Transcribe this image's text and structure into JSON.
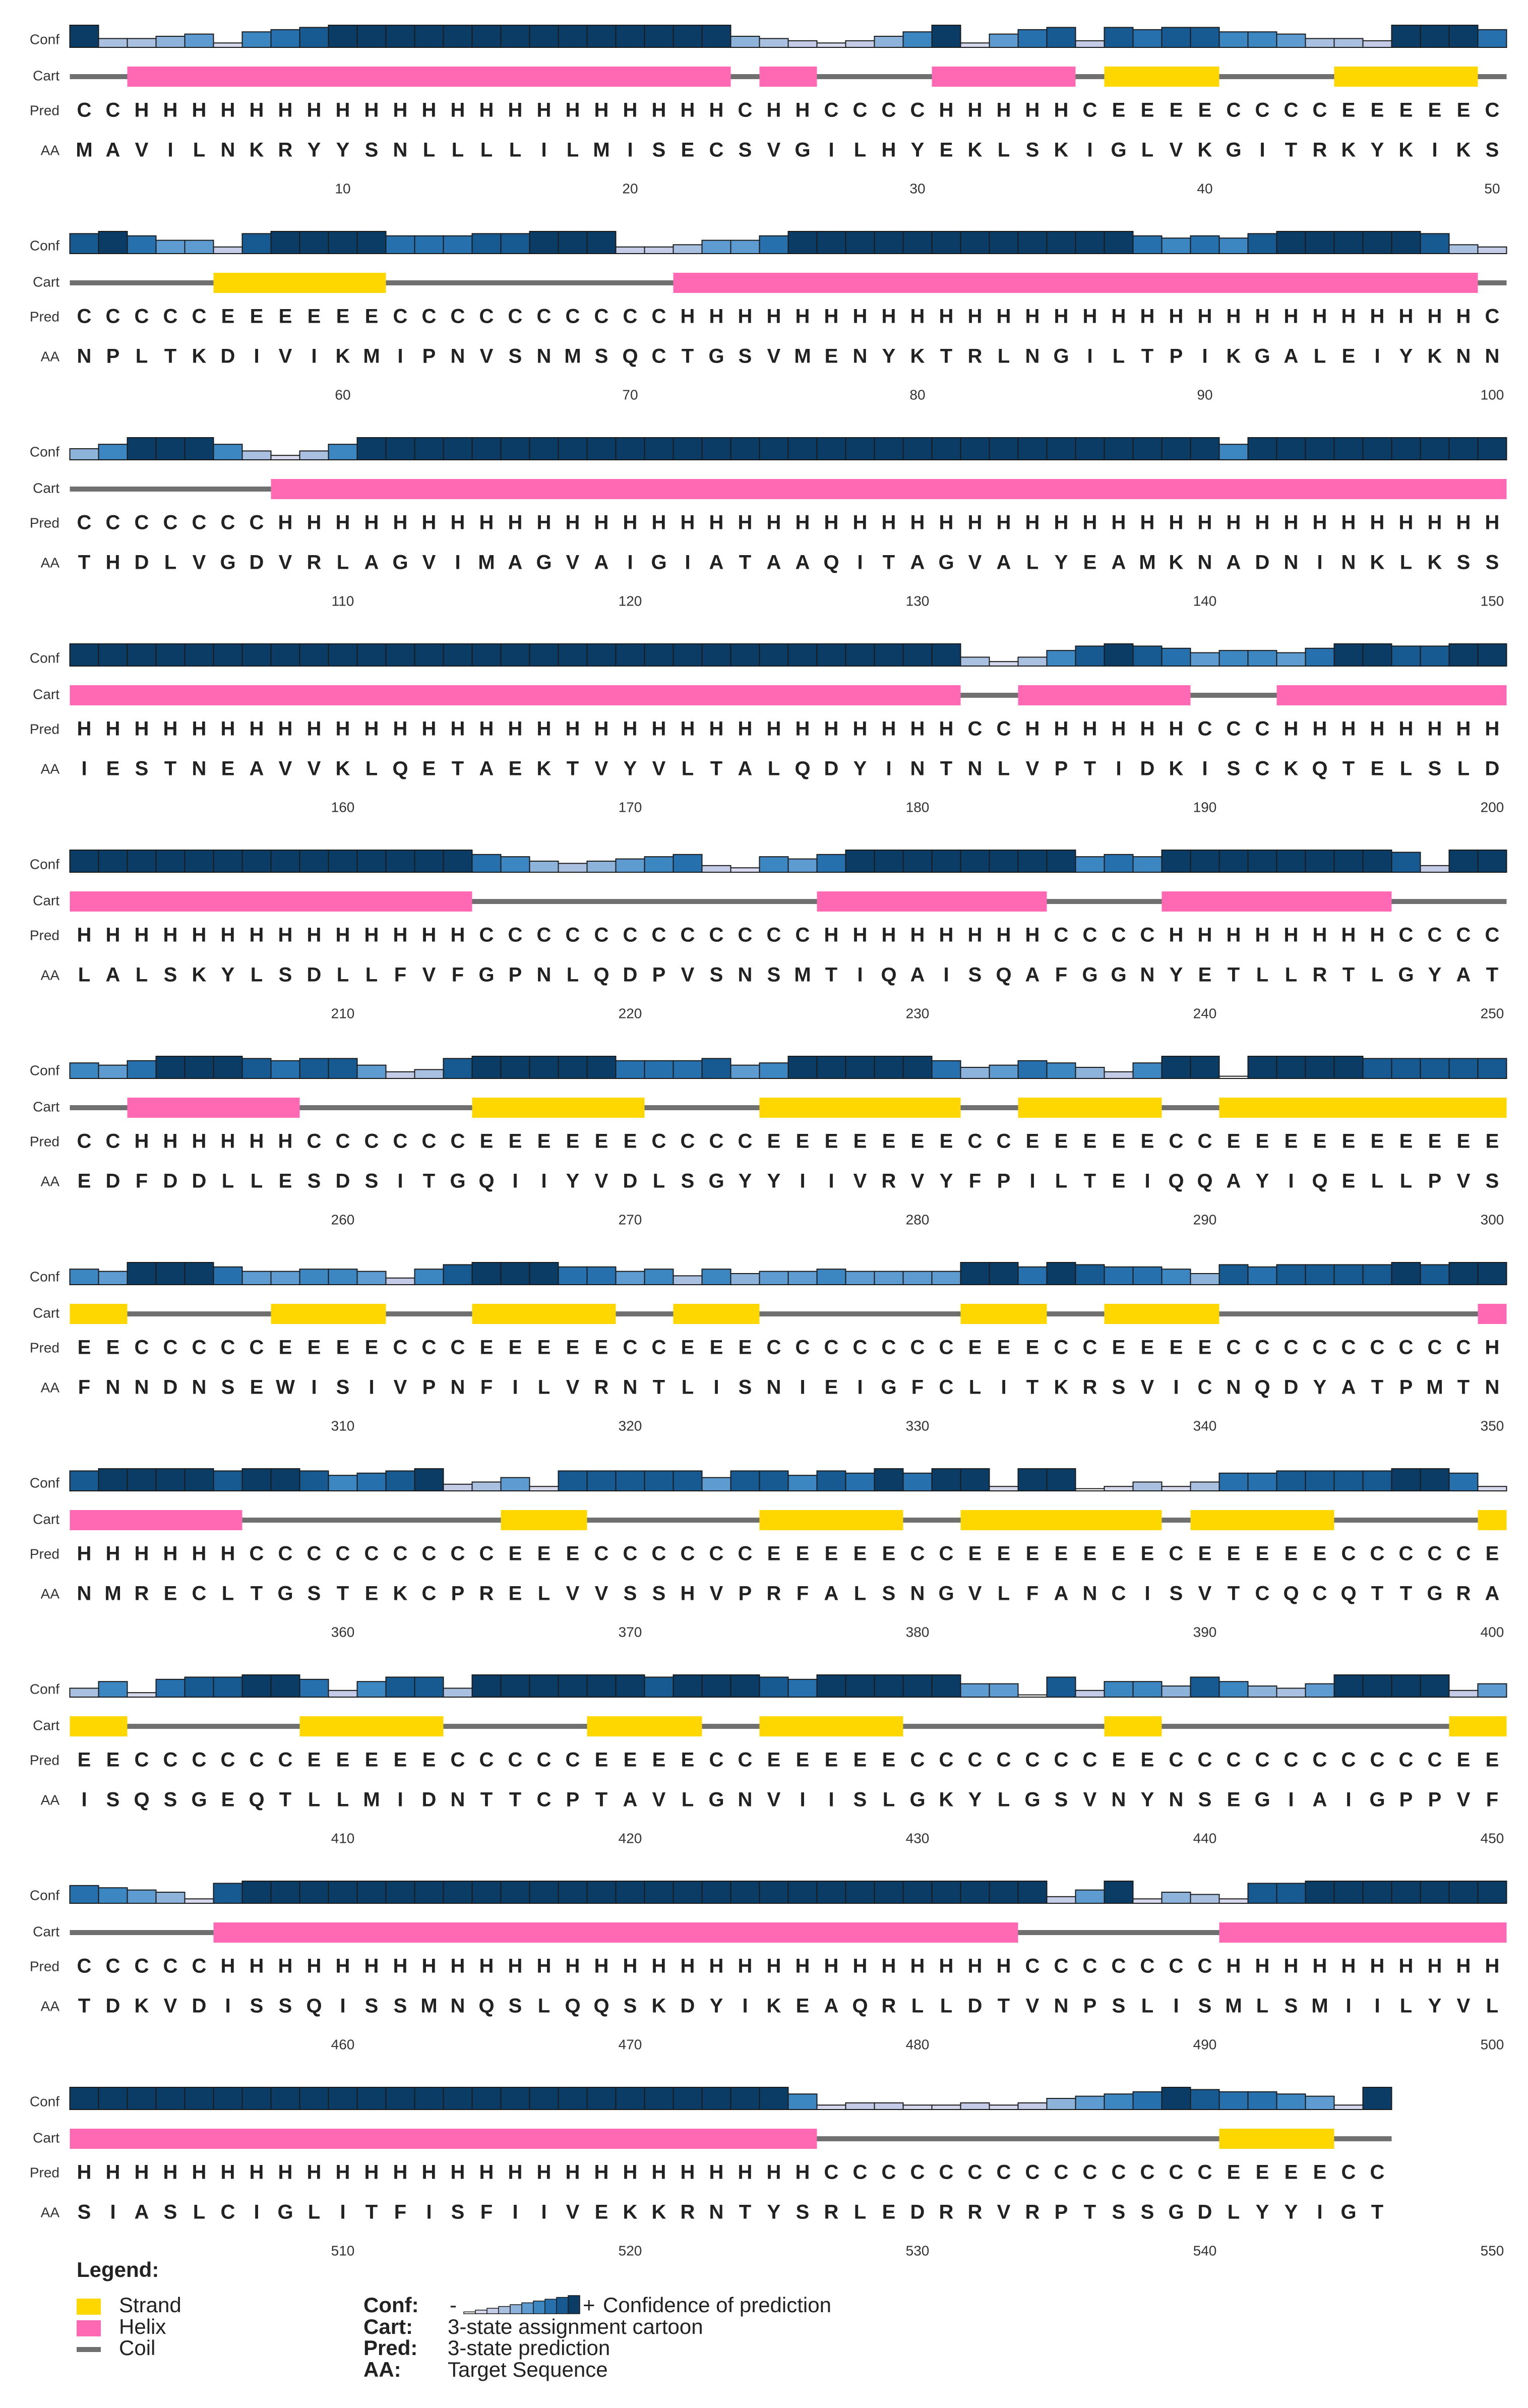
{
  "rows": [
    {
      "conf": [
        9,
        3,
        3,
        4,
        5,
        1,
        6,
        7,
        8,
        9,
        9,
        9,
        9,
        9,
        9,
        9,
        9,
        9,
        9,
        9,
        9,
        9,
        9,
        4,
        3,
        2,
        1,
        2,
        4,
        6,
        9,
        1,
        5,
        7,
        8,
        2,
        8,
        7,
        8,
        8,
        6,
        6,
        5,
        3,
        3,
        2,
        9,
        9,
        9,
        7
      ],
      "pred": "CCHHHHHHHHHHHHHHHHHHHHHCHHCCCCHHHHHCEEEECCCCEEEEEC",
      "aa": "MAVILNKRYYSNLLLLILMISECSVGILHYEKLSKIGLVKGITRKYKIKS",
      "ticks": [
        10,
        20,
        30,
        40,
        50
      ]
    },
    {
      "conf": [
        8,
        9,
        7,
        5,
        5,
        2,
        8,
        9,
        9,
        9,
        9,
        7,
        7,
        7,
        8,
        8,
        9,
        9,
        9,
        2,
        2,
        3,
        5,
        5,
        7,
        9,
        9,
        9,
        9,
        9,
        9,
        9,
        9,
        9,
        9,
        9,
        9,
        7,
        6,
        7,
        6,
        8,
        9,
        9,
        9,
        9,
        9,
        8,
        3,
        2
      ],
      "pred": "CCCCCEEEEEECCCCCCCCCCHHHHHHHHHHHHHHHHHHHHHHHHHHHHC",
      "aa": "NPLTKDIVIKMIPNVSNMSQCTGSVMENYKTRLNGILTPIKGALEIYKNN",
      "ticks": [
        60,
        70,
        80,
        90,
        100
      ]
    },
    {
      "conf": [
        4,
        6,
        9,
        9,
        9,
        6,
        3,
        1,
        3,
        6,
        9,
        9,
        9,
        9,
        9,
        9,
        9,
        9,
        9,
        9,
        9,
        9,
        9,
        9,
        9,
        9,
        9,
        9,
        9,
        9,
        9,
        9,
        9,
        9,
        9,
        9,
        9,
        9,
        9,
        9,
        6,
        9,
        9,
        9,
        9,
        9,
        9,
        9,
        9,
        9
      ],
      "pred": "CCCCCCCHHHHHHHHHHHHHHHHHHHHHHHHHHHHHHHHHHHHHHHHHHH",
      "aa": "THDLVGDVRLAGVIMAGVAIGIATAAQITAGVALYEAMKNADNINKLKSS",
      "ticks": [
        110,
        120,
        130,
        140,
        150
      ]
    },
    {
      "conf": [
        9,
        9,
        9,
        9,
        9,
        9,
        9,
        9,
        9,
        9,
        9,
        9,
        9,
        9,
        9,
        9,
        9,
        9,
        9,
        9,
        9,
        9,
        9,
        9,
        9,
        9,
        9,
        9,
        9,
        9,
        9,
        3,
        1,
        3,
        6,
        8,
        9,
        8,
        7,
        5,
        6,
        6,
        5,
        7,
        9,
        9,
        8,
        8,
        9,
        9
      ],
      "pred": "HHHHHHHHHHHHHHHHHHHHHHHHHHHHHHHCCHHHHHHCCCHHHHHHHH",
      "aa": "IESTNEAVVKLQETAEKTVYVLTALQDYINTNLVPTIDKISCKQTELSLD",
      "ticks": [
        160,
        170,
        180,
        190,
        200
      ]
    },
    {
      "conf": [
        9,
        9,
        9,
        9,
        9,
        9,
        9,
        9,
        9,
        9,
        9,
        9,
        9,
        9,
        7,
        6,
        4,
        3,
        4,
        5,
        6,
        7,
        2,
        1,
        6,
        5,
        7,
        9,
        9,
        9,
        9,
        9,
        9,
        9,
        9,
        6,
        7,
        6,
        9,
        9,
        9,
        9,
        9,
        9,
        9,
        9,
        8,
        2,
        9,
        9
      ],
      "pred": "HHHHHHHHHHHHHHCCCCCCCCCCCCHHHHHHHHCCCCHHHHHHHHCCCC",
      "aa": "LALSKYLSDLLFVFGPNLQDPVSNSMTIQAISQAFGGNYETLLRTLGYAT",
      "ticks": [
        210,
        220,
        230,
        240,
        250
      ]
    },
    {
      "conf": [
        6,
        5,
        7,
        9,
        9,
        9,
        8,
        7,
        8,
        8,
        5,
        2,
        3,
        8,
        9,
        9,
        9,
        9,
        9,
        7,
        7,
        7,
        8,
        5,
        6,
        9,
        9,
        9,
        9,
        9,
        7,
        4,
        5,
        7,
        6,
        4,
        2,
        6,
        9,
        9,
        0,
        9,
        9,
        9,
        9,
        8,
        8,
        8,
        8,
        8
      ],
      "pred": "CCHHHHHHCCCCCCEEEEEECCCCEEEEEEECCEEEEECCEEEEEEEEEE",
      "aa": "EDFDDLLESDSITGQIIYVDLSGYYIIVRVYFPILTEIQQAYIQELLPVS",
      "ticks": [
        260,
        270,
        280,
        290,
        300
      ]
    },
    {
      "conf": [
        6,
        5,
        9,
        9,
        9,
        7,
        5,
        5,
        6,
        6,
        5,
        2,
        6,
        8,
        9,
        9,
        9,
        7,
        7,
        5,
        6,
        3,
        6,
        4,
        5,
        5,
        6,
        5,
        5,
        5,
        5,
        9,
        9,
        7,
        9,
        8,
        7,
        7,
        6,
        4,
        8,
        7,
        8,
        8,
        8,
        8,
        9,
        8,
        9,
        9
      ],
      "pred": "EECCCCCEEEECCCEEEEECCEEECCCCCCCEEECCEEEECCCCCCCCCH",
      "aa": "FNNDNSEWISIVPNFILVRNTLISNIEIGFCLITKRSVICNQDYATPMTN",
      "ticks": [
        310,
        320,
        330,
        340,
        350
      ]
    },
    {
      "conf": [
        8,
        9,
        9,
        9,
        9,
        8,
        9,
        9,
        8,
        6,
        7,
        8,
        9,
        2,
        3,
        5,
        1,
        8,
        8,
        8,
        8,
        8,
        5,
        8,
        8,
        6,
        8,
        7,
        9,
        7,
        9,
        9,
        1,
        9,
        9,
        0,
        1,
        3,
        1,
        3,
        7,
        7,
        8,
        8,
        8,
        8,
        9,
        9,
        7,
        1
      ],
      "pred": "HHHHHHCCCCCCCCCEEECCCCCCEEEEECCEEEEEEECEEEEECCCCCE",
      "aa": "NMRECLTGSTEKCPRELVVSSHVPRFALSNGVLFANCISVTCQCQTTGRA",
      "ticks": [
        360,
        370,
        380,
        390,
        400
      ]
    },
    {
      "conf": [
        3,
        6,
        1,
        7,
        8,
        8,
        9,
        9,
        7,
        2,
        6,
        8,
        8,
        3,
        9,
        9,
        9,
        9,
        9,
        9,
        8,
        9,
        9,
        9,
        8,
        7,
        9,
        9,
        9,
        9,
        9,
        5,
        5,
        0,
        8,
        2,
        6,
        6,
        4,
        8,
        6,
        4,
        3,
        5,
        9,
        9,
        9,
        9,
        2,
        5
      ],
      "pred": "EECCCCCCEEEEECCCCCEEEECCEEEEECCCCCCCEECCCCCCCCCCEE",
      "aa": "ISQSGEQTLLMIDNTTCPTAVLGNVIISLGKYLGSVNYNSEGIAIGPPVF",
      "ticks": [
        410,
        420,
        430,
        440,
        450
      ]
    },
    {
      "conf": [
        7,
        6,
        5,
        4,
        1,
        8,
        9,
        9,
        9,
        9,
        9,
        9,
        9,
        9,
        9,
        9,
        9,
        9,
        9,
        9,
        9,
        9,
        9,
        9,
        9,
        9,
        9,
        9,
        9,
        9,
        9,
        9,
        9,
        9,
        2,
        5,
        9,
        1,
        4,
        3,
        1,
        8,
        8,
        9,
        9,
        9,
        9,
        9,
        9,
        9
      ],
      "pred": "CCCCCHHHHHHHHHHHHHHHHHHHHHHHHHHHHCCCCCCCHHHHHHHHHH",
      "aa": "TDKVDISSQISSMNQSLQQSKDYIKEAQRLLDTVNPSLISMLSMIILYVL",
      "ticks": [
        460,
        470,
        480,
        490,
        500
      ]
    },
    {
      "conf": [
        9,
        9,
        9,
        9,
        9,
        9,
        9,
        9,
        9,
        9,
        9,
        9,
        9,
        9,
        9,
        9,
        9,
        9,
        9,
        9,
        9,
        9,
        9,
        9,
        9,
        6,
        1,
        2,
        2,
        1,
        1,
        2,
        1,
        2,
        4,
        5,
        6,
        7,
        9,
        8,
        7,
        7,
        6,
        5,
        1,
        9
      ],
      "pred": "HHHHHHHHHHHHHHHHHHHHHHHHHHCCCCCCCCCCCCCCEEEECC",
      "aa": "SIASLCIGLITFISFIIVEKKRNTYSRLEDRRVRPTSSGDLYYIGT",
      "ticks": [
        510,
        520,
        530,
        540,
        550
      ]
    }
  ],
  "row_labels": {
    "conf": "Conf",
    "cart": "Cart",
    "pred": "Pred",
    "aa": "AA"
  },
  "conf_colors": [
    "#ffffff",
    "#d6d9ee",
    "#c3cbe6",
    "#a9c0e0",
    "#8db3da",
    "#5d9bd0",
    "#3c86c2",
    "#2570ad",
    "#175a91",
    "#0b3c66"
  ],
  "helix_color": "#ff69b4",
  "strand_color": "#ffd700",
  "coil_color": "#707070",
  "legend": {
    "title": "Legend:",
    "strand": "Strand",
    "helix": "Helix",
    "coil": "Coil",
    "conf_key": "Conf:",
    "conf_minus": "-",
    "conf_plus": "+",
    "conf_text": "Confidence of prediction",
    "cart_key": "Cart:",
    "cart_text": "3-state assignment cartoon",
    "pred_key": "Pred:",
    "pred_text": "3-state prediction",
    "aa_key": "AA:",
    "aa_text": "Target Sequence"
  }
}
